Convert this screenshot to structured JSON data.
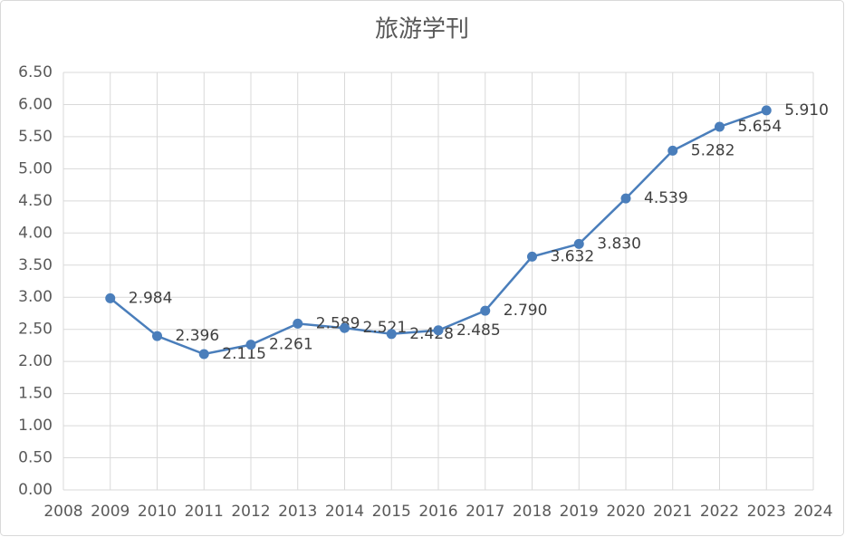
{
  "chart_data": {
    "type": "line",
    "title": "旅游学刊",
    "x": [
      2009,
      2010,
      2011,
      2012,
      2013,
      2014,
      2015,
      2016,
      2017,
      2018,
      2019,
      2020,
      2021,
      2022,
      2023
    ],
    "series": [
      {
        "color": "#4a7ebb",
        "values": [
          2.984,
          2.396,
          2.115,
          2.261,
          2.589,
          2.521,
          2.428,
          2.485,
          2.79,
          3.632,
          3.83,
          4.539,
          5.282,
          5.654,
          5.91
        ],
        "value_labels": [
          "2.984",
          "2.396",
          "2.115",
          "2.261",
          "2.589",
          "2.521",
          "2.428",
          "2.485",
          "2.790",
          "3.632",
          "3.830",
          "4.539",
          "5.282",
          "5.654",
          "5.910"
        ]
      }
    ],
    "xlim": [
      2008,
      2024
    ],
    "xticks": [
      2008,
      2009,
      2010,
      2011,
      2012,
      2013,
      2014,
      2015,
      2016,
      2017,
      2018,
      2019,
      2020,
      2021,
      2022,
      2023,
      2024
    ],
    "ylim": [
      0,
      6.5
    ],
    "yticks": [
      {
        "value": 0,
        "label": "0.00"
      },
      {
        "value": 0.5,
        "label": "0.50"
      },
      {
        "value": 1,
        "label": "1.00"
      },
      {
        "value": 1.5,
        "label": "1.50"
      },
      {
        "value": 2,
        "label": "2.00"
      },
      {
        "value": 2.5,
        "label": "2.50"
      },
      {
        "value": 3,
        "label": "3.00"
      },
      {
        "value": 3.5,
        "label": "3.50"
      },
      {
        "value": 4,
        "label": "4.00"
      },
      {
        "value": 4.5,
        "label": "4.50"
      },
      {
        "value": 5,
        "label": "5.00"
      },
      {
        "value": 5.5,
        "label": "5.50"
      },
      {
        "value": 6,
        "label": "6.00"
      },
      {
        "value": 6.5,
        "label": "6.50"
      }
    ],
    "grid": true
  }
}
